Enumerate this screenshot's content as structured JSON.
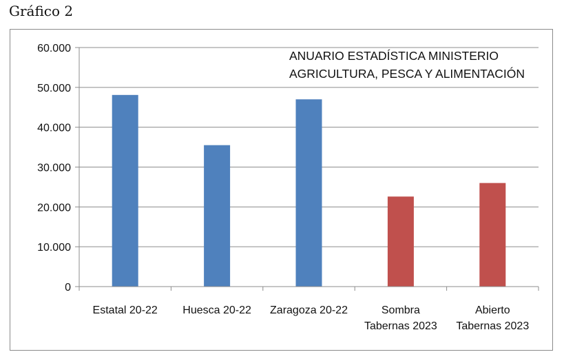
{
  "caption": "Gráfico 2",
  "chart_data": {
    "type": "bar",
    "title": "",
    "xlabel": "",
    "ylabel": "",
    "ylim": [
      0,
      60000
    ],
    "yticks": [
      0,
      10000,
      20000,
      30000,
      40000,
      50000,
      60000
    ],
    "ytick_labels": [
      "0",
      "10.000",
      "20.000",
      "30.000",
      "40.000",
      "50.000",
      "60.000"
    ],
    "categories": [
      [
        "Estatal 20-22"
      ],
      [
        "Huesca 20-22"
      ],
      [
        "Zaragoza 20-22"
      ],
      [
        "Sombra",
        "Tabernas 2023"
      ],
      [
        "Abierto",
        "Tabernas 2023"
      ]
    ],
    "values": [
      48100,
      35500,
      47000,
      22600,
      26000
    ],
    "colors": [
      "#4f81bd",
      "#4f81bd",
      "#4f81bd",
      "#c0504d",
      "#c0504d"
    ],
    "grid": true,
    "annotation": [
      "ANUARIO ESTADÍSTICA MINISTERIO",
      "AGRICULTURA, PESCA Y ALIMENTACIÓN"
    ]
  }
}
